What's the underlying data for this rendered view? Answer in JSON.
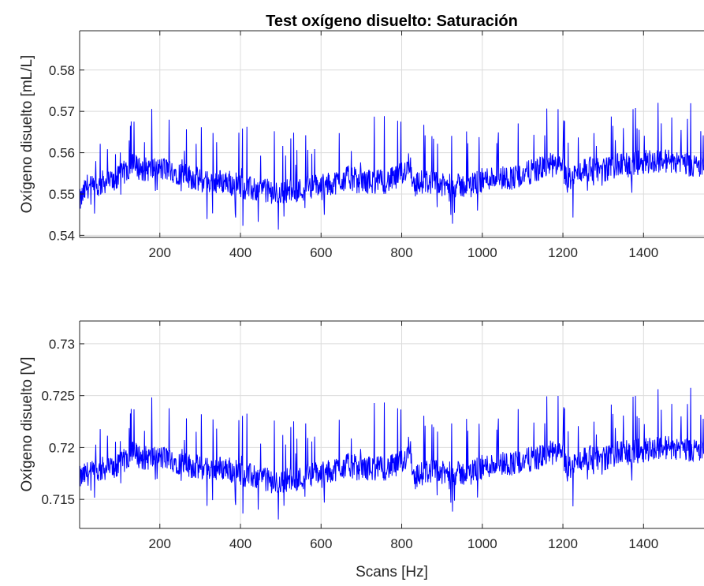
{
  "figure": {
    "title": "Test oxígeno disuelto: Saturación",
    "line_color": "#0000ff"
  },
  "chart_data": [
    {
      "type": "line",
      "title": "Test oxígeno disuelto: Saturación",
      "xlabel": "",
      "ylabel": "Oxígeno disuelto [mL/L]",
      "xlim": [
        1,
        1550
      ],
      "ylim": [
        0.5395,
        0.5895
      ],
      "xticks": [
        200,
        400,
        600,
        800,
        1000,
        1200,
        1400
      ],
      "xtick_labels": [
        "200",
        "400",
        "600",
        "800",
        "1000",
        "1200",
        "1400"
      ],
      "yticks": [
        0.54,
        0.55,
        0.56,
        0.57,
        0.58
      ],
      "ytick_labels": [
        "0.54",
        "0.55",
        "0.56",
        "0.57",
        "0.58"
      ],
      "grid": true,
      "series": [
        {
          "x": [
            1,
            20,
            40,
            60,
            80,
            100,
            130,
            160,
            190,
            220,
            250,
            280,
            310,
            340,
            370,
            400,
            430,
            460,
            490,
            520,
            550,
            580,
            610,
            640,
            670,
            700,
            730,
            760,
            790,
            810,
            820,
            830,
            850,
            870,
            900,
            930,
            960,
            990,
            1020,
            1050,
            1080,
            1110,
            1140,
            1170,
            1200,
            1210,
            1220,
            1250,
            1280,
            1310,
            1340,
            1370,
            1400,
            1430,
            1460,
            1490,
            1520,
            1550
          ],
          "y": [
            0.548,
            0.552,
            0.551,
            0.553,
            0.553,
            0.554,
            0.557,
            0.556,
            0.556,
            0.556,
            0.555,
            0.554,
            0.553,
            0.553,
            0.553,
            0.552,
            0.551,
            0.551,
            0.55,
            0.551,
            0.551,
            0.552,
            0.552,
            0.553,
            0.554,
            0.553,
            0.553,
            0.553,
            0.554,
            0.556,
            0.558,
            0.552,
            0.553,
            0.553,
            0.552,
            0.552,
            0.552,
            0.553,
            0.554,
            0.554,
            0.554,
            0.555,
            0.556,
            0.557,
            0.556,
            0.553,
            0.554,
            0.556,
            0.556,
            0.556,
            0.557,
            0.557,
            0.558,
            0.558,
            0.558,
            0.558,
            0.557,
            0.556
          ]
        }
      ]
    },
    {
      "type": "line",
      "xlabel": "Scans [Hz]",
      "ylabel": "Oxígeno disuelto [V]",
      "xlim": [
        1,
        1550
      ],
      "ylim": [
        0.7122,
        0.7322
      ],
      "xticks": [
        200,
        400,
        600,
        800,
        1000,
        1200,
        1400
      ],
      "xtick_labels": [
        "200",
        "400",
        "600",
        "800",
        "1000",
        "1200",
        "1400"
      ],
      "yticks": [
        0.715,
        0.72,
        0.725,
        0.73
      ],
      "ytick_labels": [
        "0.715",
        "0.72",
        "0.725",
        "0.73"
      ],
      "grid": true,
      "series": [
        {
          "x": [
            1,
            20,
            40,
            60,
            80,
            100,
            130,
            160,
            190,
            220,
            250,
            280,
            310,
            340,
            370,
            400,
            430,
            460,
            490,
            520,
            550,
            580,
            610,
            640,
            670,
            700,
            730,
            760,
            790,
            810,
            820,
            830,
            850,
            870,
            900,
            930,
            960,
            990,
            1020,
            1050,
            1080,
            1110,
            1140,
            1170,
            1200,
            1210,
            1220,
            1250,
            1280,
            1310,
            1340,
            1370,
            1400,
            1430,
            1460,
            1490,
            1520,
            1550
          ],
          "y": [
            0.717,
            0.7175,
            0.7175,
            0.718,
            0.718,
            0.7182,
            0.7195,
            0.719,
            0.719,
            0.719,
            0.7185,
            0.7182,
            0.718,
            0.718,
            0.718,
            0.7175,
            0.7172,
            0.717,
            0.7165,
            0.717,
            0.717,
            0.7175,
            0.7175,
            0.718,
            0.7183,
            0.718,
            0.718,
            0.718,
            0.7183,
            0.719,
            0.7205,
            0.717,
            0.7175,
            0.7178,
            0.7175,
            0.7175,
            0.7175,
            0.718,
            0.7183,
            0.7185,
            0.7185,
            0.7188,
            0.719,
            0.7195,
            0.7192,
            0.7178,
            0.7182,
            0.719,
            0.719,
            0.719,
            0.7195,
            0.7195,
            0.7198,
            0.72,
            0.72,
            0.72,
            0.7198,
            0.7195
          ]
        }
      ]
    }
  ]
}
